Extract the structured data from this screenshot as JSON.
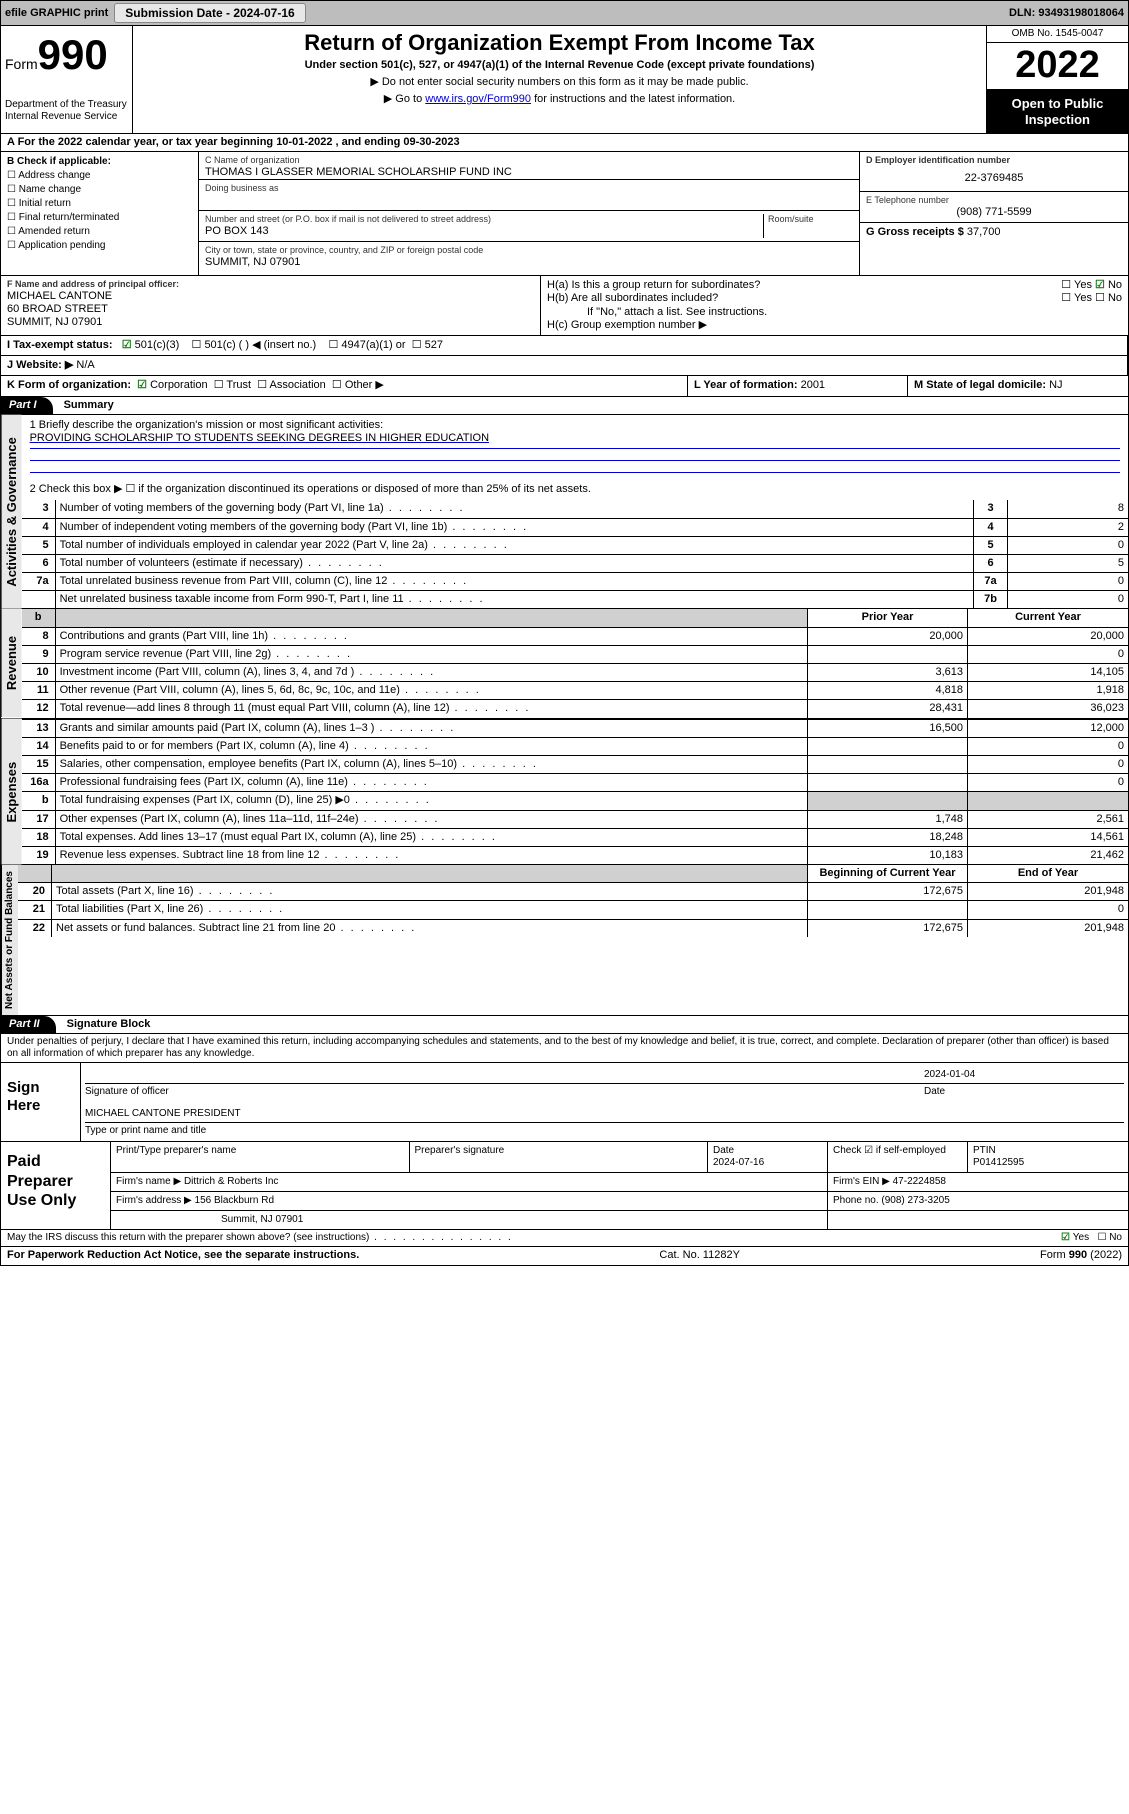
{
  "topbar": {
    "efile": "efile GRAPHIC print",
    "submission_label": "Submission Date - 2024-07-16",
    "dln_label": "DLN: 93493198018064"
  },
  "header": {
    "form_prefix": "Form",
    "form_number": "990",
    "dept": "Department of the Treasury",
    "irs": "Internal Revenue Service",
    "title": "Return of Organization Exempt From Income Tax",
    "subtitle": "Under section 501(c), 527, or 4947(a)(1) of the Internal Revenue Code (except private foundations)",
    "note1": "Do not enter social security numbers on this form as it may be made public.",
    "note2_pre": "Go to ",
    "note2_link": "www.irs.gov/Form990",
    "note2_post": " for instructions and the latest information.",
    "omb": "OMB No. 1545-0047",
    "year": "2022",
    "inspect": "Open to Public Inspection"
  },
  "line_a": "A For the 2022 calendar year, or tax year beginning 10-01-2022   , and ending 09-30-2023",
  "block_b": {
    "title": "B Check if applicable:",
    "items": [
      "Address change",
      "Name change",
      "Initial return",
      "Final return/terminated",
      "Amended return",
      "Application pending"
    ]
  },
  "block_c": {
    "label": "C Name of organization",
    "name": "THOMAS I GLASSER MEMORIAL SCHOLARSHIP FUND INC",
    "dba_label": "Doing business as",
    "addr_label": "Number and street (or P.O. box if mail is not delivered to street address)",
    "room_label": "Room/suite",
    "addr": "PO BOX 143",
    "city_label": "City or town, state or province, country, and ZIP or foreign postal code",
    "city": "SUMMIT, NJ  07901"
  },
  "block_d": {
    "label": "D Employer identification number",
    "value": "22-3769485"
  },
  "block_e": {
    "label": "E Telephone number",
    "value": "(908) 771-5599"
  },
  "block_g": {
    "label": "G Gross receipts $",
    "value": "37,700"
  },
  "block_f": {
    "label": "F Name and address of principal officer:",
    "name": "MICHAEL CANTONE",
    "addr1": "60 BROAD STREET",
    "addr2": "SUMMIT, NJ  07901"
  },
  "block_h": {
    "a": "H(a)  Is this a group return for subordinates?",
    "a_yes": "Yes",
    "a_no": "No",
    "b": "H(b)  Are all subordinates included?",
    "b_note": "If \"No,\" attach a list. See instructions.",
    "c": "H(c)  Group exemption number ▶"
  },
  "line_i": {
    "label": "I   Tax-exempt status:",
    "o1": "501(c)(3)",
    "o2": "501(c) (   ) ◀ (insert no.)",
    "o3": "4947(a)(1) or",
    "o4": "527"
  },
  "line_j": {
    "label": "J   Website: ▶",
    "value": "N/A"
  },
  "line_k": {
    "label": "K Form of organization:",
    "opts": [
      "Corporation",
      "Trust",
      "Association",
      "Other ▶"
    ]
  },
  "line_l": {
    "label": "L Year of formation:",
    "value": "2001"
  },
  "line_m": {
    "label": "M State of legal domicile:",
    "value": "NJ"
  },
  "part1": {
    "hdr": "Part I",
    "title": "Summary",
    "q1_label": "1   Briefly describe the organization's mission or most significant activities:",
    "q1_value": "PROVIDING SCHOLARSHIP TO STUDENTS SEEKING DEGREES IN HIGHER EDUCATION",
    "q2": "2   Check this box ▶ ☐  if the organization discontinued its operations or disposed of more than 25% of its net assets.",
    "rows_simple": [
      {
        "n": "3",
        "t": "Number of voting members of the governing body (Part VI, line 1a)",
        "box": "3",
        "v": "8"
      },
      {
        "n": "4",
        "t": "Number of independent voting members of the governing body (Part VI, line 1b)",
        "box": "4",
        "v": "2"
      },
      {
        "n": "5",
        "t": "Total number of individuals employed in calendar year 2022 (Part V, line 2a)",
        "box": "5",
        "v": "0"
      },
      {
        "n": "6",
        "t": "Total number of volunteers (estimate if necessary)",
        "box": "6",
        "v": "5"
      },
      {
        "n": "7a",
        "t": "Total unrelated business revenue from Part VIII, column (C), line 12",
        "box": "7a",
        "v": "0"
      },
      {
        "n": "",
        "t": "Net unrelated business taxable income from Form 990-T, Part I, line 11",
        "box": "7b",
        "v": "0"
      }
    ],
    "col_hdr_b": "b",
    "col_prior": "Prior Year",
    "col_current": "Current Year"
  },
  "revenue": {
    "side": "Revenue",
    "rows": [
      {
        "n": "8",
        "t": "Contributions and grants (Part VIII, line 1h)",
        "p": "20,000",
        "c": "20,000"
      },
      {
        "n": "9",
        "t": "Program service revenue (Part VIII, line 2g)",
        "p": "",
        "c": "0"
      },
      {
        "n": "10",
        "t": "Investment income (Part VIII, column (A), lines 3, 4, and 7d )",
        "p": "3,613",
        "c": "14,105"
      },
      {
        "n": "11",
        "t": "Other revenue (Part VIII, column (A), lines 5, 6d, 8c, 9c, 10c, and 11e)",
        "p": "4,818",
        "c": "1,918"
      },
      {
        "n": "12",
        "t": "Total revenue—add lines 8 through 11 (must equal Part VIII, column (A), line 12)",
        "p": "28,431",
        "c": "36,023"
      }
    ]
  },
  "expenses": {
    "side": "Expenses",
    "rows": [
      {
        "n": "13",
        "t": "Grants and similar amounts paid (Part IX, column (A), lines 1–3 )",
        "p": "16,500",
        "c": "12,000"
      },
      {
        "n": "14",
        "t": "Benefits paid to or for members (Part IX, column (A), line 4)",
        "p": "",
        "c": "0"
      },
      {
        "n": "15",
        "t": "Salaries, other compensation, employee benefits (Part IX, column (A), lines 5–10)",
        "p": "",
        "c": "0"
      },
      {
        "n": "16a",
        "t": "Professional fundraising fees (Part IX, column (A), line 11e)",
        "p": "",
        "c": "0"
      },
      {
        "n": "b",
        "t": "Total fundraising expenses (Part IX, column (D), line 25) ▶0",
        "p": "GRAY",
        "c": "GRAY"
      },
      {
        "n": "17",
        "t": "Other expenses (Part IX, column (A), lines 11a–11d, 11f–24e)",
        "p": "1,748",
        "c": "2,561"
      },
      {
        "n": "18",
        "t": "Total expenses. Add lines 13–17 (must equal Part IX, column (A), line 25)",
        "p": "18,248",
        "c": "14,561"
      },
      {
        "n": "19",
        "t": "Revenue less expenses. Subtract line 18 from line 12",
        "p": "10,183",
        "c": "21,462"
      }
    ]
  },
  "netassets": {
    "side": "Net Assets or Fund Balances",
    "col_b": "Beginning of Current Year",
    "col_e": "End of Year",
    "rows": [
      {
        "n": "20",
        "t": "Total assets (Part X, line 16)",
        "p": "172,675",
        "c": "201,948"
      },
      {
        "n": "21",
        "t": "Total liabilities (Part X, line 26)",
        "p": "",
        "c": "0"
      },
      {
        "n": "22",
        "t": "Net assets or fund balances. Subtract line 21 from line 20",
        "p": "172,675",
        "c": "201,948"
      }
    ]
  },
  "gov_side": "Activities & Governance",
  "part2": {
    "hdr": "Part II",
    "title": "Signature Block",
    "decl": "Under penalties of perjury, I declare that I have examined this return, including accompanying schedules and statements, and to the best of my knowledge and belief, it is true, correct, and complete. Declaration of preparer (other than officer) is based on all information of which preparer has any knowledge."
  },
  "sign": {
    "side": "Sign Here",
    "sig_label": "Signature of officer",
    "date_label": "Date",
    "date": "2024-01-04",
    "name": "MICHAEL CANTONE  PRESIDENT",
    "name_label": "Type or print name and title"
  },
  "prep": {
    "side": "Paid Preparer Use Only",
    "h_name": "Print/Type preparer's name",
    "h_sig": "Preparer's signature",
    "h_date": "Date",
    "date": "2024-07-16",
    "h_check": "Check ☑ if self-employed",
    "h_ptin": "PTIN",
    "ptin": "P01412595",
    "firm_label": "Firm's name      ▶",
    "firm": "Dittrich & Roberts Inc",
    "ein_label": "Firm's EIN ▶",
    "ein": "47-2224858",
    "addr_label": "Firm's address ▶",
    "addr1": "156 Blackburn Rd",
    "addr2": "Summit, NJ  07901",
    "phone_label": "Phone no.",
    "phone": "(908) 273-3205"
  },
  "discuss": {
    "q": "May the IRS discuss this return with the preparer shown above? (see instructions)",
    "yes": "Yes",
    "no": "No"
  },
  "footer": {
    "left": "For Paperwork Reduction Act Notice, see the separate instructions.",
    "mid": "Cat. No. 11282Y",
    "right_pre": "Form ",
    "right_b": "990",
    "right_post": " (2022)"
  }
}
